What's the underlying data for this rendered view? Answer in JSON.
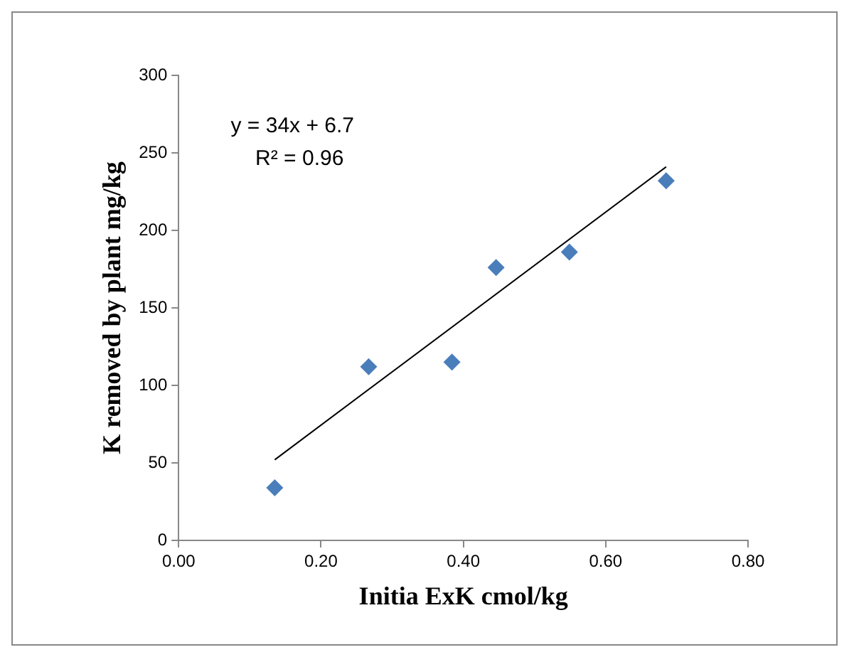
{
  "chart_data": {
    "type": "scatter",
    "xlabel": "Initia ExK cmol/kg",
    "ylabel": "K removed by plant mg/kg",
    "annotations": [
      "y = 34x + 6.7",
      "R² = 0.96"
    ],
    "xlim": [
      0,
      0.8
    ],
    "xticks": [
      {
        "value": 0,
        "label": "0.00"
      },
      {
        "value": 0.2,
        "label": "0.20"
      },
      {
        "value": 0.4,
        "label": "0.40"
      },
      {
        "value": 0.6,
        "label": "0.60"
      },
      {
        "value": 0.8,
        "label": "0.80"
      }
    ],
    "ylim": [
      0,
      300
    ],
    "yticks": [
      0,
      50,
      100,
      150,
      200,
      250,
      300
    ],
    "grid": false,
    "legend": false,
    "marker": "diamond",
    "series": [
      {
        "color": "#4a7ebb",
        "x": [
          0.135,
          0.267,
          0.384,
          0.446,
          0.549,
          0.685
        ],
        "values": [
          34,
          112,
          115,
          176,
          186,
          232
        ]
      },
      {
        "type": "line",
        "color": "#000000",
        "marker": "none",
        "x": [
          0.135,
          0.685
        ],
        "values": [
          52,
          241
        ]
      }
    ]
  }
}
